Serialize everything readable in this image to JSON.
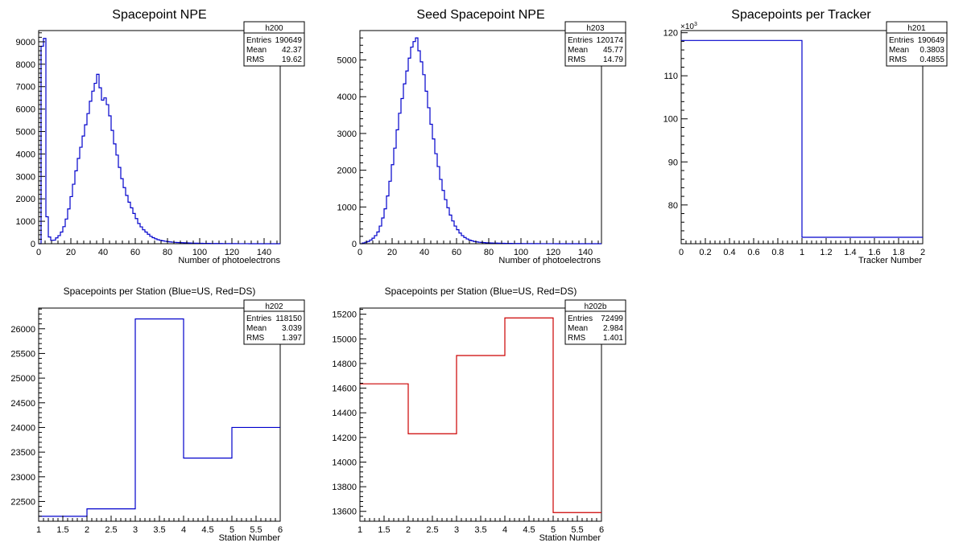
{
  "colors": {
    "us": "#0000cc",
    "ds": "#cc0000",
    "axis": "#000000",
    "background": "#ffffff"
  },
  "chart_data": [
    {
      "id": "h200",
      "type": "histogram",
      "title": "Spacepoint NPE",
      "xlabel": "Number of photoelectrons",
      "ylabel": "",
      "xlim": [
        0,
        150
      ],
      "ylim": [
        0,
        9500
      ],
      "xticks": [
        0,
        20,
        40,
        60,
        80,
        100,
        120,
        140
      ],
      "yticks": [
        0,
        1000,
        2000,
        3000,
        4000,
        5000,
        6000,
        7000,
        8000,
        9000
      ],
      "grid": false,
      "color": "us",
      "bin_width": 1.5,
      "bin_start": 0,
      "values": [
        0,
        8800,
        9150,
        1200,
        300,
        150,
        160,
        260,
        360,
        520,
        760,
        1100,
        1550,
        2100,
        2650,
        3250,
        3800,
        4300,
        4800,
        5300,
        5800,
        6350,
        6800,
        7150,
        7550,
        6950,
        6400,
        6500,
        6200,
        5700,
        5050,
        4450,
        3950,
        3400,
        2900,
        2500,
        2150,
        1850,
        1600,
        1350,
        1120,
        900,
        750,
        620,
        520,
        420,
        330,
        270,
        220,
        180,
        150,
        130,
        110,
        95,
        80,
        70,
        60,
        55,
        50,
        45,
        40,
        35,
        30,
        28,
        25,
        22,
        20,
        18,
        16,
        14,
        13,
        12,
        11,
        10,
        9,
        8,
        7,
        6,
        5,
        5,
        4,
        4,
        3,
        3,
        2,
        2,
        2,
        1,
        1,
        1,
        1,
        1,
        0,
        0,
        0,
        0,
        0,
        0,
        0,
        0
      ],
      "stats": {
        "name": "h200",
        "entries_label": "Entries",
        "entries": "190649",
        "mean_label": "Mean",
        "mean": "42.37",
        "rms_label": "RMS",
        "rms": "19.62"
      }
    },
    {
      "id": "h203",
      "type": "histogram",
      "title": "Seed Spacepoint NPE",
      "xlabel": "Number of photoelectrons",
      "ylabel": "",
      "xlim": [
        0,
        150
      ],
      "ylim": [
        0,
        5800
      ],
      "xticks": [
        0,
        20,
        40,
        60,
        80,
        100,
        120,
        140
      ],
      "yticks": [
        0,
        1000,
        2000,
        3000,
        4000,
        5000
      ],
      "grid": false,
      "color": "us",
      "bin_width": 1.5,
      "bin_start": 0,
      "values": [
        0,
        20,
        40,
        60,
        100,
        150,
        220,
        320,
        480,
        700,
        950,
        1300,
        1700,
        2150,
        2600,
        3100,
        3550,
        3950,
        4350,
        4700,
        5050,
        5350,
        5500,
        5600,
        5250,
        4950,
        4600,
        4150,
        3700,
        3250,
        2850,
        2450,
        2100,
        1750,
        1450,
        1200,
        980,
        780,
        620,
        480,
        380,
        290,
        220,
        170,
        130,
        100,
        80,
        60,
        50,
        40,
        35,
        30,
        25,
        22,
        20,
        18,
        16,
        14,
        12,
        11,
        10,
        9,
        8,
        7,
        6,
        5,
        5,
        4,
        4,
        3,
        3,
        2,
        2,
        2,
        1,
        1,
        1,
        1,
        1,
        1,
        1,
        0,
        0,
        0,
        0,
        0,
        0,
        0,
        0,
        0,
        0,
        0,
        0,
        0,
        0,
        0,
        0,
        0,
        0,
        0
      ],
      "stats": {
        "name": "h203",
        "entries_label": "Entries",
        "entries": "120174",
        "mean_label": "Mean",
        "mean": "45.77",
        "rms_label": "RMS",
        "rms": "14.79"
      }
    },
    {
      "id": "h201",
      "type": "histogram",
      "title": "Spacepoints per Tracker",
      "xlabel": "Tracker Number",
      "ylabel": "",
      "exponent_label": "×10",
      "exponent_power": "3",
      "xlim": [
        0,
        2
      ],
      "ylim": [
        71,
        120.5
      ],
      "xticks": [
        0,
        0.2,
        0.4,
        0.6,
        0.8,
        1,
        1.2,
        1.4,
        1.6,
        1.8,
        2
      ],
      "yticks": [
        80,
        90,
        100,
        110,
        120
      ],
      "grid": false,
      "color": "us",
      "bin_width": 1,
      "bin_start": 0,
      "values": [
        118.2,
        72.5
      ],
      "stats": {
        "name": "h201",
        "entries_label": "Entries",
        "entries": "190649",
        "mean_label": "Mean",
        "mean": "0.3803",
        "rms_label": "RMS",
        "rms": "0.4855"
      }
    },
    {
      "id": "h202",
      "type": "histogram",
      "title": "Spacepoints per Station (Blue=US, Red=DS)",
      "xlabel": "Station Number",
      "ylabel": "",
      "xlim": [
        1,
        6
      ],
      "ylim": [
        22100,
        26420
      ],
      "xticks": [
        1,
        1.5,
        2,
        2.5,
        3,
        3.5,
        4,
        4.5,
        5,
        5.5,
        6
      ],
      "yticks": [
        22500,
        23000,
        23500,
        24000,
        24500,
        25000,
        25500,
        26000
      ],
      "grid": false,
      "color": "us",
      "bin_width": 1,
      "bin_start": 1,
      "values": [
        22200,
        22350,
        26200,
        23380,
        24000
      ],
      "stats": {
        "name": "h202",
        "entries_label": "Entries",
        "entries": "118150",
        "mean_label": "Mean",
        "mean": "3.039",
        "rms_label": "RMS",
        "rms": "1.397"
      }
    },
    {
      "id": "h202b",
      "type": "histogram",
      "title": "Spacepoints per Station (Blue=US, Red=DS)",
      "xlabel": "Station Number",
      "ylabel": "",
      "xlim": [
        1,
        6
      ],
      "ylim": [
        13520,
        15250
      ],
      "xticks": [
        1,
        1.5,
        2,
        2.5,
        3,
        3.5,
        4,
        4.5,
        5,
        5.5,
        6
      ],
      "yticks": [
        13600,
        13800,
        14000,
        14200,
        14400,
        14600,
        14800,
        15000,
        15200
      ],
      "grid": false,
      "color": "ds",
      "bin_width": 1,
      "bin_start": 1,
      "values": [
        14635,
        14230,
        14865,
        15170,
        13590
      ],
      "stats": {
        "name": "h202b",
        "entries_label": "Entries",
        "entries": "72499",
        "mean_label": "Mean",
        "mean": "2.984",
        "rms_label": "RMS",
        "rms": "1.401"
      }
    }
  ]
}
